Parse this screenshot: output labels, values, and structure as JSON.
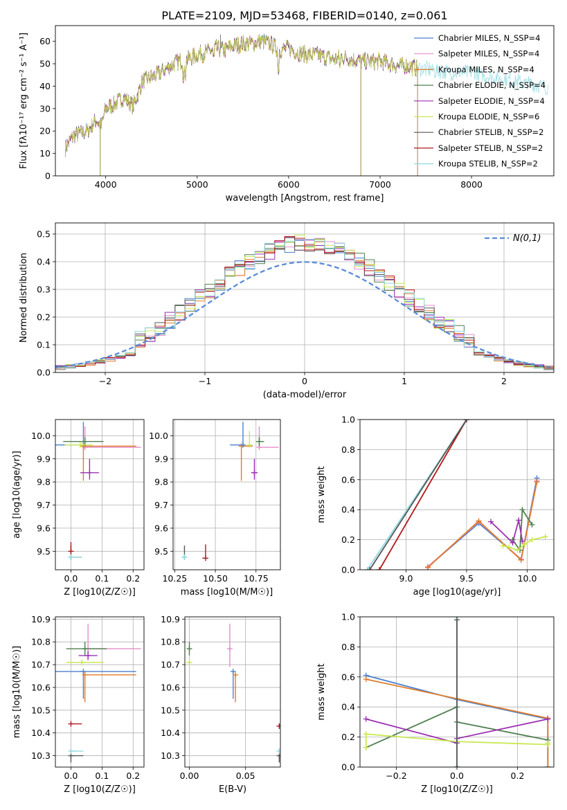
{
  "figure_title": "PLATE=2109, MJD=53468, FIBERID=0140, z=0.061",
  "colors": {
    "chabrier_miles": "#4a7fd0",
    "salpeter_miles": "#e58cc8",
    "kroupa_miles": "#e07b2a",
    "chabrier_elodie": "#4f7f4f",
    "salpeter_elodie": "#9b30b0",
    "kroupa_elodie": "#c8e850",
    "chabrier_stelib": "#555555",
    "salpeter_stelib": "#b01818",
    "kroupa_stelib": "#8fd8df",
    "normal_curve": "#5a8ad8",
    "grid": "#b0b0b0"
  },
  "chart_data": [
    {
      "id": "spectrum",
      "type": "line",
      "xlabel": "wavelength [Angstrom, rest frame]",
      "ylabel": "Flux [fλ10⁻¹⁷ erg cm⁻² s⁻¹ A⁻¹]",
      "xlim": [
        3450,
        8900
      ],
      "ylim": [
        0,
        67
      ],
      "xticks": [
        4000,
        5000,
        6000,
        7000,
        8000
      ],
      "yticks": [
        0,
        10,
        20,
        30,
        40,
        50,
        60
      ],
      "grid": false,
      "legend_position": "top-right",
      "legend": [
        "Chabrier MILES, N_SSP=4",
        "Salpeter MILES, N_SSP=4",
        "Kroupa MILES, N_SSP=4",
        "Chabrier ELODIE, N_SSP=4",
        "Salpeter ELODIE, N_SSP=4",
        "Kroupa ELODIE, N_SSP=6",
        "Chabrier STELIB, N_SSP=2",
        "Salpeter STELIB, N_SSP=2",
        "Kroupa STELIB, N_SSP=2"
      ],
      "continuum": {
        "x": [
          3550,
          3650,
          3800,
          3900,
          3950,
          4000,
          4100,
          4200,
          4300,
          4400,
          4500,
          4600,
          4700,
          4800,
          4900,
          5000,
          5100,
          5200,
          5300,
          5400,
          5500,
          5600,
          5700,
          5800,
          5900,
          6000,
          6100,
          6200,
          6300,
          6400,
          6500,
          6600,
          6700,
          6800,
          6900,
          7000,
          7100,
          7200,
          7300,
          7400,
          7600,
          7800,
          8000,
          8200,
          8400,
          8600,
          8800,
          8850
        ],
        "y": [
          12,
          18,
          20,
          25,
          22,
          30,
          32,
          35,
          31,
          42,
          44,
          46,
          49,
          51,
          52,
          54,
          55,
          57,
          56,
          58,
          59,
          59,
          60,
          59,
          56,
          57,
          55,
          54,
          54,
          53,
          52,
          53,
          52,
          51,
          51,
          51,
          50,
          49,
          49,
          48,
          47,
          46,
          46,
          44,
          43,
          41,
          40,
          39
        ]
      },
      "drops": [
        [
          3940,
          0
        ],
        [
          6790,
          0
        ],
        [
          7410,
          0
        ]
      ],
      "spike": [
        5255,
        63
      ]
    },
    {
      "id": "residuals",
      "type": "histogram",
      "xlabel": "(data-model)/error",
      "ylabel": "Normed distribution",
      "xlim": [
        -2.5,
        2.5
      ],
      "ylim": [
        0,
        0.54
      ],
      "xticks": [
        -2,
        -1,
        0,
        1,
        2
      ],
      "yticks": [
        0.0,
        0.1,
        0.2,
        0.3,
        0.4,
        0.5
      ],
      "grid": true,
      "legend_position": "top-right",
      "curve_label": "N(0,1)",
      "bin_width": 0.1,
      "bin_start": -2.5
    },
    {
      "id": "age_vs_Z",
      "type": "scatter",
      "xlabel": "Z [log10(Z/Z☉)]",
      "ylabel": "age [log10(age/yr)]",
      "xlim": [
        -0.05,
        0.235
      ],
      "ylim": [
        9.42,
        10.07
      ],
      "xticks": [
        0.0,
        0.1,
        0.2
      ],
      "yticks": [
        9.5,
        9.6,
        9.7,
        9.8,
        9.9,
        10.0
      ],
      "grid": true,
      "points": [
        {
          "c": "chabrier_miles",
          "x": 0.04,
          "xe": [
            0.18,
            0.0
          ],
          "y": 9.96,
          "ye": [
            0.0,
            0.1
          ]
        },
        {
          "c": "salpeter_miles",
          "x": 0.045,
          "xe": [
            0.0,
            0.18
          ],
          "y": 9.95,
          "ye": [
            0.0,
            0.09
          ]
        },
        {
          "c": "kroupa_miles",
          "x": 0.04,
          "xe": [
            0.0,
            0.17
          ],
          "y": 9.955,
          "ye": [
            0.15,
            0.0
          ]
        },
        {
          "c": "chabrier_elodie",
          "x": 0.045,
          "xe": [
            0.07,
            0.06
          ],
          "y": 9.975,
          "ye": [
            0.02,
            0.02
          ]
        },
        {
          "c": "salpeter_elodie",
          "x": 0.06,
          "xe": [
            0.03,
            0.03
          ],
          "y": 9.84,
          "ye": [
            0.03,
            0.06
          ]
        },
        {
          "c": "kroupa_elodie",
          "x": 0.03,
          "xe": [
            0.05,
            0.04
          ],
          "y": 9.96,
          "ye": [
            0.01,
            0.01
          ]
        },
        {
          "c": "chabrier_stelib",
          "x": 0.0,
          "xe": [
            0.0,
            0.035
          ],
          "y": 9.475,
          "ye": [
            0.0,
            0.05
          ]
        },
        {
          "c": "salpeter_stelib",
          "x": 0.0,
          "xe": [
            0.0,
            0.0
          ],
          "y": 9.5,
          "ye": [
            0.0,
            0.04
          ]
        },
        {
          "c": "kroupa_stelib",
          "x": 0.0,
          "xe": [
            0.0,
            0.035
          ],
          "y": 9.475,
          "ye": [
            0.01,
            0.01
          ]
        }
      ]
    },
    {
      "id": "age_vs_mass",
      "type": "scatter",
      "xlabel": "mass [log10(M/M☉)]",
      "ylabel": "",
      "xlim": [
        10.24,
        10.9
      ],
      "ylim": [
        9.42,
        10.07
      ],
      "xticks": [
        10.25,
        10.5,
        10.75
      ],
      "yticks": [
        9.5,
        9.6,
        9.7,
        9.8,
        9.9,
        10.0
      ],
      "grid": true,
      "points": [
        {
          "c": "chabrier_miles",
          "x": 10.67,
          "xe": [
            0.08,
            0.0
          ],
          "y": 9.96,
          "ye": [
            0.0,
            0.1
          ]
        },
        {
          "c": "salpeter_miles",
          "x": 10.77,
          "xe": [
            0.0,
            0.12
          ],
          "y": 9.95,
          "ye": [
            0.0,
            0.09
          ]
        },
        {
          "c": "kroupa_miles",
          "x": 10.66,
          "xe": [
            0.0,
            0.07
          ],
          "y": 9.955,
          "ye": [
            0.15,
            0.0
          ]
        },
        {
          "c": "chabrier_elodie",
          "x": 10.77,
          "xe": [
            0.02,
            0.03
          ],
          "y": 9.975,
          "ye": [
            0.02,
            0.02
          ]
        },
        {
          "c": "salpeter_elodie",
          "x": 10.74,
          "xe": [
            0.02,
            0.02
          ],
          "y": 9.84,
          "ye": [
            0.03,
            0.06
          ]
        },
        {
          "c": "kroupa_elodie",
          "x": 10.71,
          "xe": [
            0.01,
            0.01
          ],
          "y": 9.96,
          "ye": [
            0.01,
            0.06
          ]
        },
        {
          "c": "chabrier_stelib",
          "x": 10.31,
          "xe": [
            0.0,
            0.0
          ],
          "y": 9.475,
          "ye": [
            0.0,
            0.05
          ]
        },
        {
          "c": "salpeter_stelib",
          "x": 10.44,
          "xe": [
            0.02,
            0.0
          ],
          "y": 9.47,
          "ye": [
            0.0,
            0.06
          ]
        },
        {
          "c": "kroupa_stelib",
          "x": 10.31,
          "xe": [
            0.0,
            0.01
          ],
          "y": 9.475,
          "ye": [
            0.01,
            0.01
          ]
        }
      ]
    },
    {
      "id": "weight_vs_age",
      "type": "line",
      "xlabel": "age [log10(age/yr)]",
      "ylabel": "mass weight",
      "xlim": [
        8.62,
        10.22
      ],
      "ylim": [
        0.0,
        1.0
      ],
      "xticks": [
        9.0,
        9.5,
        10.0
      ],
      "yticks": [
        0.0,
        0.2,
        0.4,
        0.6,
        0.8,
        1.0
      ],
      "grid": true,
      "series": [
        {
          "c": "kroupa_stelib",
          "x": [
            8.68,
            9.5
          ],
          "y": [
            0.0,
            1.0
          ]
        },
        {
          "c": "salpeter_stelib",
          "x": [
            8.78,
            9.5
          ],
          "y": [
            0.0,
            1.0
          ]
        },
        {
          "c": "chabrier_stelib",
          "x": [
            8.7,
            9.5
          ],
          "y": [
            0.0,
            1.0
          ]
        },
        {
          "c": "chabrier_miles",
          "x": [
            9.18,
            9.6,
            9.95,
            10.08
          ],
          "y": [
            0.02,
            0.31,
            0.07,
            0.61
          ]
        },
        {
          "c": "salpeter_miles",
          "x": [
            9.18,
            9.6,
            9.95,
            10.08
          ],
          "y": [
            0.02,
            0.32,
            0.07,
            0.59
          ]
        },
        {
          "c": "kroupa_miles",
          "x": [
            9.18,
            9.6,
            9.95,
            10.08
          ],
          "y": [
            0.015,
            0.325,
            0.065,
            0.585
          ]
        },
        {
          "c": "chabrier_elodie",
          "x": [
            9.88,
            9.94,
            9.96,
            10.04
          ],
          "y": [
            0.2,
            0.13,
            0.4,
            0.3
          ]
        },
        {
          "c": "salpeter_elodie",
          "x": [
            9.7,
            9.88,
            9.93,
            9.96
          ],
          "y": [
            0.32,
            0.18,
            0.33,
            0.19
          ]
        },
        {
          "c": "kroupa_elodie",
          "x": [
            9.8,
            9.85,
            9.92,
            9.98,
            10.04,
            10.15
          ],
          "y": [
            0.16,
            0.15,
            0.13,
            0.17,
            0.2,
            0.22
          ]
        }
      ]
    },
    {
      "id": "mass_vs_Z",
      "type": "scatter",
      "xlabel": "Z [log10(Z/Z☉)]",
      "ylabel": "mass [log10(M/M☉)]",
      "xlim": [
        -0.05,
        0.235
      ],
      "ylim": [
        10.25,
        10.91
      ],
      "xticks": [
        0.0,
        0.1,
        0.2
      ],
      "yticks": [
        10.3,
        10.4,
        10.5,
        10.6,
        10.7,
        10.8,
        10.9
      ],
      "grid": true,
      "points": [
        {
          "c": "chabrier_miles",
          "x": 0.04,
          "xe": [
            0.15,
            0.17
          ],
          "y": 10.67,
          "ye": [
            0.12,
            0.0
          ]
        },
        {
          "c": "salpeter_miles",
          "x": 0.055,
          "xe": [
            0.0,
            0.17
          ],
          "y": 10.77,
          "ye": [
            0.0,
            0.11
          ]
        },
        {
          "c": "kroupa_miles",
          "x": 0.045,
          "xe": [
            0.0,
            0.165
          ],
          "y": 10.655,
          "ye": [
            0.12,
            0.0
          ]
        },
        {
          "c": "chabrier_elodie",
          "x": 0.045,
          "xe": [
            0.06,
            0.07
          ],
          "y": 10.77,
          "ye": [
            0.03,
            0.03
          ]
        },
        {
          "c": "salpeter_elodie",
          "x": 0.055,
          "xe": [
            0.03,
            0.03
          ],
          "y": 10.74,
          "ye": [
            0.02,
            0.02
          ]
        },
        {
          "c": "kroupa_elodie",
          "x": 0.035,
          "xe": [
            0.05,
            0.07
          ],
          "y": 10.71,
          "ye": [
            0.01,
            0.01
          ]
        },
        {
          "c": "chabrier_stelib",
          "x": 0.0,
          "xe": [
            0.0,
            0.04
          ],
          "y": 10.3,
          "ye": [
            0.03,
            0.0
          ]
        },
        {
          "c": "salpeter_stelib",
          "x": 0.0,
          "xe": [
            0.0,
            0.035
          ],
          "y": 10.44,
          "ye": [
            0.0,
            0.0
          ]
        },
        {
          "c": "kroupa_stelib",
          "x": 0.0,
          "xe": [
            0.0,
            0.04
          ],
          "y": 10.32,
          "ye": [
            0.01,
            0.01
          ]
        }
      ]
    },
    {
      "id": "mass_vs_ebv",
      "type": "scatter",
      "xlabel": "E(B-V)",
      "ylabel": "",
      "xlim": [
        -0.004,
        0.081
      ],
      "ylim": [
        10.25,
        10.91
      ],
      "xticks": [
        0.0,
        0.05
      ],
      "yticks": [
        10.3,
        10.4,
        10.5,
        10.6,
        10.7,
        10.8,
        10.9
      ],
      "grid": true,
      "points": [
        {
          "c": "chabrier_miles",
          "x": 0.039,
          "xe": [
            0,
            0
          ],
          "y": 10.67,
          "ye": [
            0.12,
            0.0
          ]
        },
        {
          "c": "salpeter_miles",
          "x": 0.036,
          "xe": [
            0,
            0
          ],
          "y": 10.77,
          "ye": [
            0.08,
            0.11
          ]
        },
        {
          "c": "kroupa_miles",
          "x": 0.041,
          "xe": [
            0,
            0
          ],
          "y": 10.655,
          "ye": [
            0.12,
            0.0
          ]
        },
        {
          "c": "chabrier_elodie",
          "x": 0.0,
          "xe": [
            0,
            0
          ],
          "y": 10.77,
          "ye": [
            0.03,
            0.03
          ]
        },
        {
          "c": "kroupa_elodie",
          "x": 0.0,
          "xe": [
            0,
            0
          ],
          "y": 10.71,
          "ye": [
            0.01,
            0.01
          ]
        },
        {
          "c": "chabrier_stelib",
          "x": 0.08,
          "xe": [
            0,
            0
          ],
          "y": 10.3,
          "ye": [
            0.03,
            0.0
          ]
        },
        {
          "c": "salpeter_stelib",
          "x": 0.08,
          "xe": [
            0,
            0
          ],
          "y": 10.43,
          "ye": [
            0.0,
            0.01
          ]
        },
        {
          "c": "kroupa_stelib",
          "x": 0.08,
          "xe": [
            0,
            0
          ],
          "y": 10.32,
          "ye": [
            0.01,
            0.01
          ]
        }
      ]
    },
    {
      "id": "weight_vs_Z",
      "type": "line",
      "xlabel": "Z [log10(Z/Z☉)]",
      "ylabel": "mass weight",
      "xlim": [
        -0.32,
        0.32
      ],
      "ylim": [
        0.0,
        1.0
      ],
      "xticks": [
        -0.2,
        0.0,
        0.2
      ],
      "yticks": [
        0.0,
        0.2,
        0.4,
        0.6,
        0.8,
        1.0
      ],
      "grid": true,
      "series": [
        {
          "c": "chabrier_miles",
          "x": [
            -0.3,
            0.0,
            0.3,
            0.3
          ],
          "y": [
            0.61,
            0.45,
            0.32,
            0.0
          ]
        },
        {
          "c": "kroupa_miles",
          "x": [
            -0.3,
            0.0,
            0.3,
            0.3
          ],
          "y": [
            0.585,
            0.455,
            0.325,
            0.0
          ]
        },
        {
          "c": "chabrier_elodie",
          "x": [
            -0.3,
            0.0,
            0.0,
            0.3
          ],
          "y": [
            0.13,
            0.4,
            0.3,
            0.18
          ]
        },
        {
          "c": "salpeter_elodie",
          "x": [
            -0.3,
            0.0,
            0.0,
            0.3
          ],
          "y": [
            0.32,
            0.16,
            0.19,
            0.32
          ]
        },
        {
          "c": "kroupa_elodie",
          "x": [
            -0.3,
            -0.3,
            0.0,
            0.3,
            0.3
          ],
          "y": [
            0.13,
            0.22,
            0.17,
            0.15,
            0.16
          ]
        },
        {
          "c": "kroupa_stelib",
          "x": [
            0.0,
            0.0
          ],
          "y": [
            0.0,
            1.0
          ]
        },
        {
          "c": "chabrier_stelib",
          "x": [
            0.0,
            0.0
          ],
          "y": [
            0.0,
            0.98
          ]
        }
      ]
    }
  ]
}
